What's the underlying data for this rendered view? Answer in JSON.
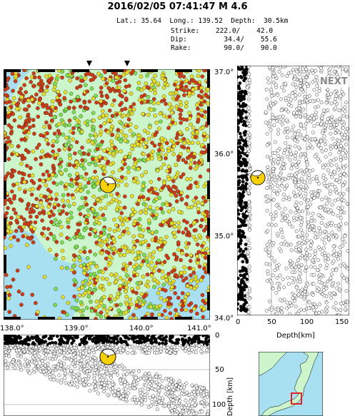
{
  "title": "2016/02/05 07:41:47  M 4.6",
  "params": {
    "lat_label": "Lat.:",
    "lat": "35.64",
    "long_label": "Long.:",
    "long": "139.52",
    "depth_label": "Depth:",
    "depth": "30.5km",
    "strike_label": "Strike:",
    "strike": "222.0/",
    "strike2": "42.0",
    "dip_label": "Dip:",
    "dip": "34.4/",
    "dip2": "55.6",
    "rake_label": "Rake:",
    "rake": "90.0/",
    "rake2": "90.0"
  },
  "map": {
    "lat_ticks": [
      "37.0°",
      "36.0°",
      "35.0°",
      "34.0°"
    ],
    "lon_ticks": [
      "138.0°",
      "139.0°",
      "140.0°",
      "141.0°"
    ],
    "colors": {
      "land": "#ccf5cc",
      "sea": "#a8e0f2",
      "shallow": "#d23a12",
      "mid": "#e8e028",
      "deep": "#7ee04c"
    }
  },
  "depth_section_right": {
    "x_ticks": [
      "0",
      "50",
      "100",
      "150"
    ],
    "xlabel": "Depth[km]",
    "next_label": "NEXT"
  },
  "depth_section_bottom": {
    "y_ticks": [
      "0",
      "50",
      "100"
    ],
    "ylabel": "Depth [km]"
  }
}
